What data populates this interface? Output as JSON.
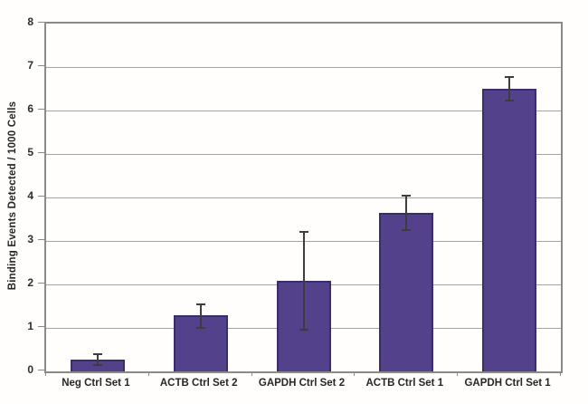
{
  "chart_data": {
    "type": "bar",
    "title": "",
    "xlabel": "",
    "ylabel": "Binding Events Detected / 1000 Cells",
    "ylim": [
      0,
      8
    ],
    "ytick_interval": 1,
    "ytick_labels": [
      "0",
      "1",
      "2",
      "3",
      "4",
      "5",
      "6",
      "7",
      "8"
    ],
    "grid": true,
    "legend": "none",
    "categories": [
      "Neg Ctrl Set 1",
      "ACTB Ctrl Set 2",
      "GAPDH Ctrl Set 2",
      "ACTB Ctrl Set 1",
      "GAPDH Ctrl Set 1"
    ],
    "series": [
      {
        "name": "Binding Events Detected / 1000 Cells",
        "values": [
          0.27,
          1.3,
          2.08,
          3.65,
          6.5
        ],
        "error_plus": [
          0.15,
          0.27,
          1.15,
          0.42,
          0.3
        ],
        "error_minus": [
          0.15,
          0.32,
          1.15,
          0.42,
          0.3
        ]
      }
    ],
    "colors": {
      "bar_fill": "#53418c",
      "bar_border": "#3b2d6b",
      "gridline": "#a3a3a3",
      "frame": "#8a8a8a",
      "error_bar": "#3d3d3d",
      "label_text": "#262626",
      "background": "#fffefc"
    }
  }
}
